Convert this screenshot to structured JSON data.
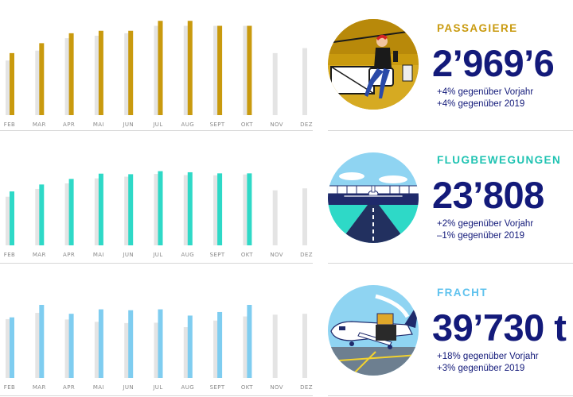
{
  "theme": {
    "grey_bar": "#e4e4e4",
    "navy": "#131a7a",
    "gold": "#c99a0e",
    "teal": "#2ed9c7",
    "sky": "#7fcdf0"
  },
  "chart_data": [
    {
      "type": "bar",
      "categories": [
        "FEB",
        "MAR",
        "APR",
        "MAI",
        "JUN",
        "JUL",
        "AUG",
        "SEPT",
        "OKT",
        "NOV",
        "DEZ"
      ],
      "series": [
        {
          "values": [
            2.2,
            2.6,
            3.1,
            3.2,
            3.3,
            3.6,
            3.6,
            3.6,
            3.6,
            2.5,
            2.7
          ]
        },
        {
          "values": [
            2.5,
            2.9,
            3.3,
            3.4,
            3.4,
            3.8,
            3.8,
            3.6,
            3.6,
            null,
            null
          ]
        }
      ],
      "ylim": [
        0,
        4
      ]
    },
    {
      "type": "bar",
      "categories": [
        "FEB",
        "MAR",
        "APR",
        "MAI",
        "JUN",
        "JUL",
        "AUG",
        "SEPT",
        "OKT",
        "NOV",
        "DEZ"
      ],
      "series": [
        {
          "values": [
            17.5,
            20.3,
            22.3,
            24.1,
            24.7,
            25.7,
            25.3,
            25.2,
            25.5,
            19.8,
            20.5
          ]
        },
        {
          "values": [
            19.4,
            21.9,
            23.9,
            25.8,
            25.6,
            26.7,
            26.3,
            25.9,
            25.9,
            null,
            null
          ]
        }
      ],
      "ylim": [
        0,
        28
      ]
    },
    {
      "type": "bar",
      "categories": [
        "FEB",
        "MAR",
        "APR",
        "MAI",
        "JUN",
        "JUL",
        "AUG",
        "SEPT",
        "OKT",
        "NOV",
        "DEZ"
      ],
      "series": [
        {
          "values": [
            33.0,
            36.5,
            32.8,
            31.5,
            30.8,
            31.0,
            28.5,
            32.2,
            34.5,
            35.5,
            36.0
          ]
        },
        {
          "values": [
            34.0,
            41.0,
            36.0,
            38.5,
            38.0,
            38.5,
            35.0,
            37.0,
            41.0,
            null,
            null
          ]
        }
      ],
      "ylim": [
        0,
        45
      ]
    }
  ],
  "panels": [
    {
      "label": "PASSAGIERE",
      "value": "2’969’6",
      "line1": "+4% gegenüber Vorjahr",
      "line2": "+4% gegenüber 2019",
      "icon": "passenger-lounge-illustration"
    },
    {
      "label": "FLUGBEWEGUNGEN",
      "value": "23’808",
      "line1": "+2% gegenüber Vorjahr",
      "line2": "–1% gegenüber 2019",
      "icon": "runway-airplane-illustration"
    },
    {
      "label": "FRACHT",
      "value": "39’730 t",
      "line1": "+18% gegenüber Vorjahr",
      "line2": "+3% gegenüber 2019",
      "icon": "cargo-loading-illustration"
    }
  ]
}
